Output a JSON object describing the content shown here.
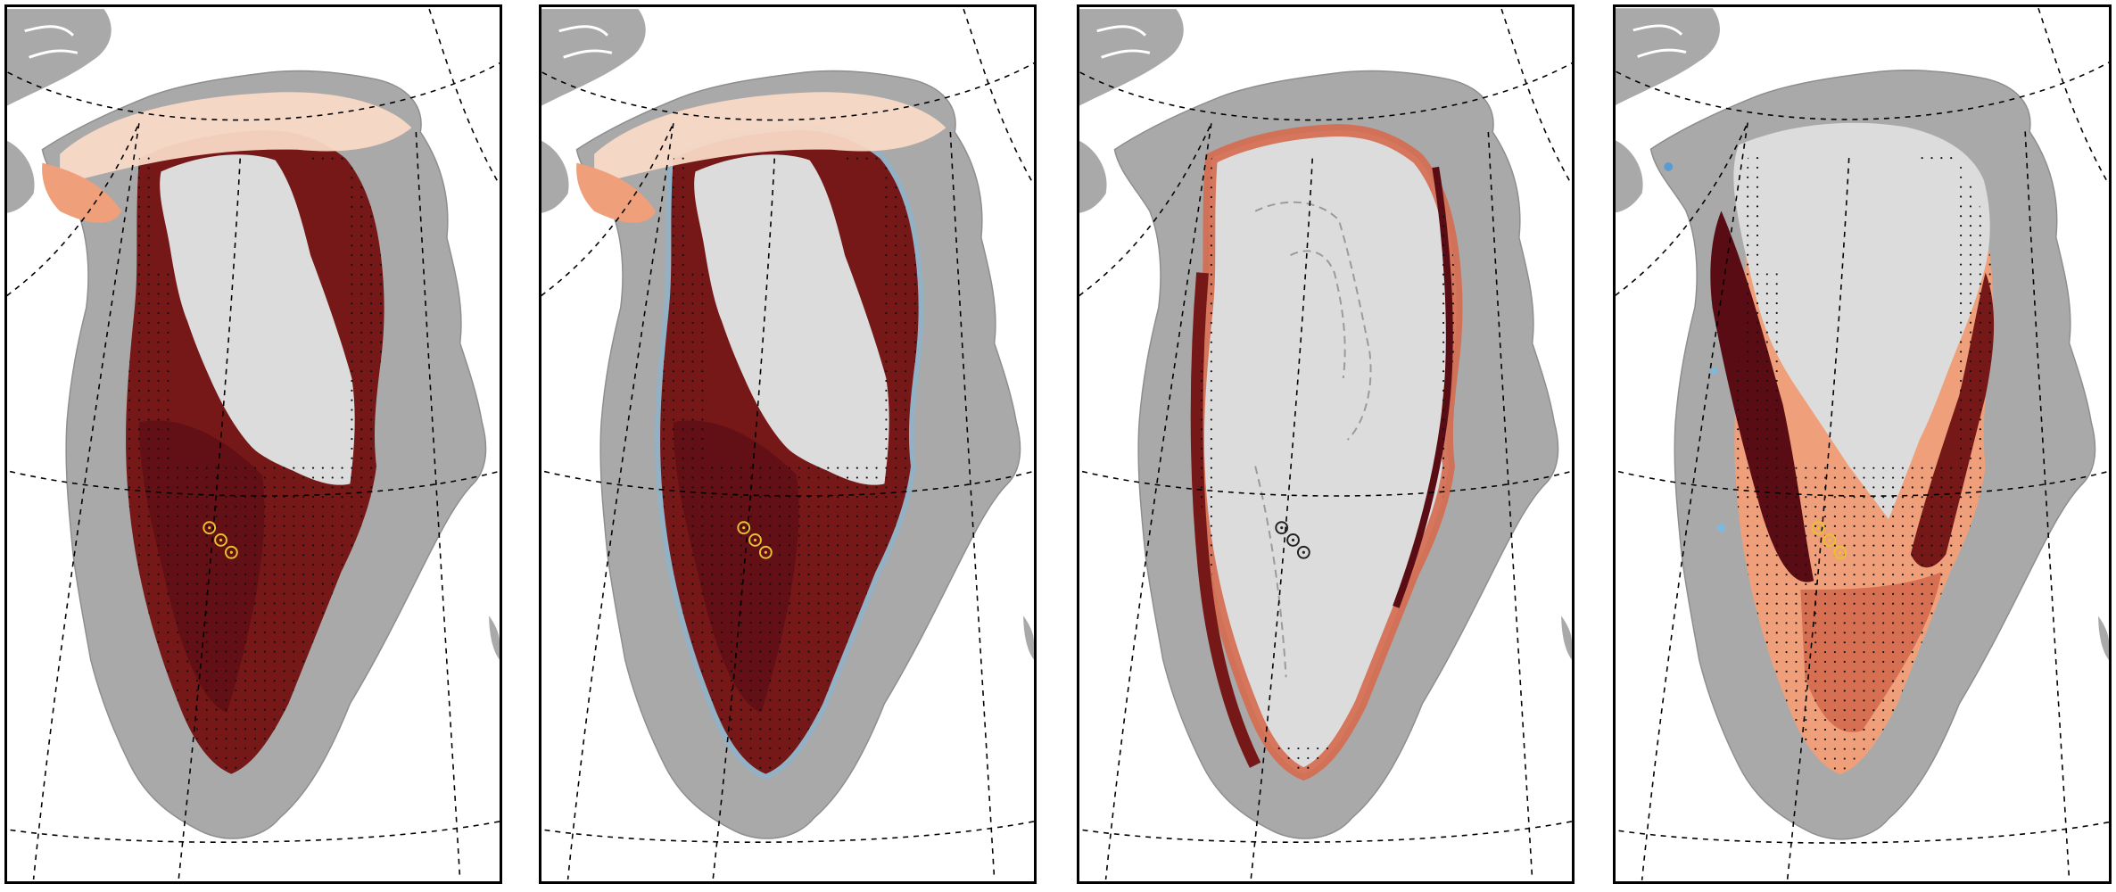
{
  "figure": {
    "panel_count": 4,
    "colors": {
      "land": "#a9a9a9",
      "ice_sheet": "#dcdcdc",
      "graticule": "#000000",
      "elevation_contour": "#9a9a9a",
      "sites_on_color_panels": "#e8c22a",
      "sites_on_grey_panel": "#222222",
      "ice_margin_blue": "#7fb8da",
      "red_scale": [
        "#f9d9c6",
        "#efa07a",
        "#d46a4f",
        "#a82a2a",
        "#761818",
        "#5a0c14"
      ]
    },
    "markers": {
      "sites": 3,
      "symbol": "circle-dot"
    }
  },
  "panels": [
    {
      "id": "a",
      "pattern": "west-and-east-broad-red",
      "stippling": true
    },
    {
      "id": "b",
      "pattern": "west-and-east-broad-red-with-blue-margin",
      "stippling": true
    },
    {
      "id": "c",
      "pattern": "narrow-red-margin",
      "stippling": true
    },
    {
      "id": "d",
      "pattern": "coarse-gridded-west-band",
      "stippling": true
    }
  ]
}
